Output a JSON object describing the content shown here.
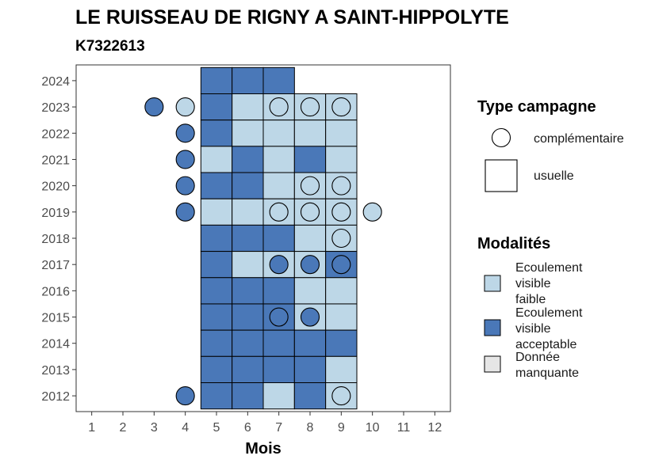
{
  "chart_data": {
    "type": "heatmap",
    "title": "LE RUISSEAU DE RIGNY A SAINT-HIPPOLYTE",
    "subtitle": "K7322613",
    "xlabel": "Mois",
    "ylabel": "",
    "x_ticks": [
      "1",
      "2",
      "3",
      "4",
      "5",
      "6",
      "7",
      "8",
      "9",
      "10",
      "11",
      "12"
    ],
    "y_ticks": [
      "2012",
      "2013",
      "2014",
      "2015",
      "2016",
      "2017",
      "2018",
      "2019",
      "2020",
      "2021",
      "2022",
      "2023",
      "2024"
    ],
    "xlim": [
      0.5,
      12.5
    ],
    "ylim": [
      2011.4,
      2024.6
    ],
    "grid": false,
    "colors": {
      "faible": "#bdd7e7",
      "acceptable": "#4a78b8",
      "manquante": "#e6e6e6",
      "outline": "#000000"
    },
    "legend_shape": {
      "title": "Type campagne",
      "items": [
        {
          "label": "complémentaire",
          "shape": "circle"
        },
        {
          "label": "usuelle",
          "shape": "square"
        }
      ]
    },
    "legend_fill": {
      "title": "Modalités",
      "items": [
        {
          "label_lines": [
            "Ecoulement",
            "visible",
            "faible"
          ],
          "key": "faible"
        },
        {
          "label_lines": [
            "Ecoulement",
            "visible",
            "acceptable"
          ],
          "key": "acceptable"
        },
        {
          "label_lines": [
            "Donnée",
            "manquante"
          ],
          "key": "manquante"
        }
      ]
    },
    "usuelle": [
      {
        "year": 2024,
        "values": {
          "5": "acceptable",
          "6": "acceptable",
          "7": "acceptable"
        }
      },
      {
        "year": 2023,
        "values": {
          "5": "acceptable",
          "6": "faible",
          "7": "faible",
          "8": "faible",
          "9": "faible"
        }
      },
      {
        "year": 2022,
        "values": {
          "5": "acceptable",
          "6": "faible",
          "7": "faible",
          "8": "faible",
          "9": "faible"
        }
      },
      {
        "year": 2021,
        "values": {
          "5": "faible",
          "6": "acceptable",
          "7": "faible",
          "8": "acceptable",
          "9": "faible"
        }
      },
      {
        "year": 2020,
        "values": {
          "5": "acceptable",
          "6": "acceptable",
          "7": "faible",
          "8": "faible",
          "9": "faible"
        }
      },
      {
        "year": 2019,
        "values": {
          "5": "faible",
          "6": "faible",
          "7": "faible",
          "8": "faible",
          "9": "faible"
        }
      },
      {
        "year": 2018,
        "values": {
          "5": "acceptable",
          "6": "acceptable",
          "7": "acceptable",
          "8": "faible",
          "9": "faible"
        }
      },
      {
        "year": 2017,
        "values": {
          "5": "acceptable",
          "6": "faible",
          "7": "faible",
          "8": "faible",
          "9": "acceptable"
        }
      },
      {
        "year": 2016,
        "values": {
          "5": "acceptable",
          "6": "acceptable",
          "7": "acceptable",
          "8": "faible",
          "9": "faible"
        }
      },
      {
        "year": 2015,
        "values": {
          "5": "acceptable",
          "6": "acceptable",
          "7": "acceptable",
          "8": "faible",
          "9": "faible"
        }
      },
      {
        "year": 2014,
        "values": {
          "5": "acceptable",
          "6": "acceptable",
          "7": "acceptable",
          "8": "acceptable",
          "9": "acceptable"
        }
      },
      {
        "year": 2013,
        "values": {
          "5": "acceptable",
          "6": "acceptable",
          "7": "acceptable",
          "8": "acceptable",
          "9": "faible"
        }
      },
      {
        "year": 2012,
        "values": {
          "5": "acceptable",
          "6": "acceptable",
          "7": "faible",
          "8": "acceptable",
          "9": "faible"
        }
      }
    ],
    "complementaire": [
      {
        "year": 2023,
        "month": 3,
        "value": "acceptable"
      },
      {
        "year": 2023,
        "month": 4,
        "value": "faible"
      },
      {
        "year": 2023,
        "month": 7,
        "value": "faible"
      },
      {
        "year": 2023,
        "month": 8,
        "value": "faible"
      },
      {
        "year": 2023,
        "month": 9,
        "value": "faible"
      },
      {
        "year": 2022,
        "month": 4,
        "value": "acceptable"
      },
      {
        "year": 2021,
        "month": 4,
        "value": "acceptable"
      },
      {
        "year": 2020,
        "month": 4,
        "value": "acceptable"
      },
      {
        "year": 2020,
        "month": 8,
        "value": "faible"
      },
      {
        "year": 2020,
        "month": 9,
        "value": "faible"
      },
      {
        "year": 2019,
        "month": 4,
        "value": "acceptable"
      },
      {
        "year": 2019,
        "month": 7,
        "value": "faible"
      },
      {
        "year": 2019,
        "month": 8,
        "value": "faible"
      },
      {
        "year": 2019,
        "month": 9,
        "value": "faible"
      },
      {
        "year": 2019,
        "month": 10,
        "value": "faible"
      },
      {
        "year": 2018,
        "month": 9,
        "value": "faible"
      },
      {
        "year": 2017,
        "month": 7,
        "value": "acceptable"
      },
      {
        "year": 2017,
        "month": 8,
        "value": "acceptable"
      },
      {
        "year": 2017,
        "month": 9,
        "value": "acceptable"
      },
      {
        "year": 2015,
        "month": 7,
        "value": "acceptable"
      },
      {
        "year": 2015,
        "month": 8,
        "value": "acceptable"
      },
      {
        "year": 2012,
        "month": 4,
        "value": "acceptable"
      },
      {
        "year": 2012,
        "month": 9,
        "value": "faible"
      }
    ]
  }
}
